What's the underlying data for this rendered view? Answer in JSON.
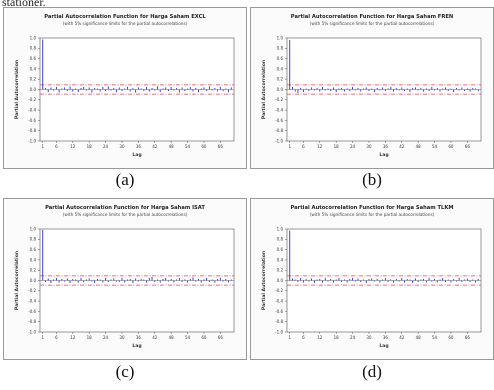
{
  "top_text": "stationer.",
  "panels": [
    {
      "caption": "(a)"
    },
    {
      "caption": "(b)"
    },
    {
      "caption": "(c)"
    },
    {
      "caption": "(d)"
    }
  ],
  "colors": {
    "spike": "#2b2bd6",
    "limit": "#e0405a",
    "frame": "#9a9a9a"
  },
  "chart_data": [
    {
      "type": "bar",
      "title": "Partial Autocorrelation Function for Harga Saham EXCL",
      "subtitle": "(with 5% significance limits for the partial autocorrelations)",
      "xlabel": "Lag",
      "ylabel": "Partial Autocorrelation",
      "ylim": [
        -1.0,
        1.0
      ],
      "yticks": [
        "1.0",
        "0.8",
        "0.6",
        "0.4",
        "0.2",
        "0.0",
        "-0.2",
        "-0.4",
        "-0.6",
        "-0.8",
        "-1.0"
      ],
      "xticks": [
        "1",
        "6",
        "12",
        "18",
        "24",
        "30",
        "36",
        "42",
        "48",
        "54",
        "60",
        "66"
      ],
      "significance_limit": 0.09,
      "x": [
        1,
        2,
        3,
        4,
        5,
        6,
        7,
        8,
        9,
        10,
        11,
        12,
        13,
        14,
        15,
        16,
        17,
        18,
        19,
        20,
        21,
        22,
        23,
        24,
        25,
        26,
        27,
        28,
        29,
        30,
        31,
        32,
        33,
        34,
        35,
        36,
        37,
        38,
        39,
        40,
        41,
        42,
        43,
        44,
        45,
        46,
        47,
        48,
        49,
        50,
        51,
        52,
        53,
        54,
        55,
        56,
        57,
        58,
        59,
        60,
        61,
        62,
        63,
        64,
        65,
        66,
        67,
        68,
        69,
        70
      ],
      "values": [
        0.97,
        0.03,
        -0.05,
        0.04,
        -0.02,
        0.05,
        -0.06,
        0.02,
        0.04,
        -0.03,
        0.06,
        -0.04,
        0.02,
        -0.05,
        0.03,
        0.05,
        -0.02,
        0.04,
        -0.06,
        0.03,
        0.02,
        -0.04,
        0.05,
        -0.03,
        0.06,
        -0.02,
        0.03,
        -0.05,
        0.04,
        -0.03,
        0.02,
        0.05,
        -0.04,
        0.03,
        -0.06,
        0.04,
        0.02,
        -0.03,
        0.05,
        -0.04,
        0.03,
        -0.02,
        0.06,
        -0.05,
        0.02,
        0.04,
        -0.03,
        0.05,
        -0.02,
        0.03,
        -0.06,
        0.04,
        -0.03,
        0.02,
        0.05,
        -0.04,
        0.03,
        -0.05,
        0.02,
        0.04,
        -0.03,
        0.06,
        -0.02,
        0.03,
        -0.04,
        0.05,
        -0.03,
        0.02,
        -0.05,
        0.04
      ]
    },
    {
      "type": "bar",
      "title": "Partial Autocorrelation Function for Harga Saham FREN",
      "subtitle": "(with 5% significance limits for the partial autocorrelations)",
      "xlabel": "Lag",
      "ylabel": "Partial Autocorrelation",
      "ylim": [
        -1.0,
        1.0
      ],
      "yticks": [
        "1.0",
        "0.8",
        "0.6",
        "0.4",
        "0.2",
        "0.0",
        "-0.2",
        "-0.4",
        "-0.6",
        "-0.8",
        "-1.0"
      ],
      "xticks": [
        "1",
        "6",
        "12",
        "18",
        "24",
        "30",
        "36",
        "42",
        "48",
        "54",
        "60",
        "66"
      ],
      "significance_limit": 0.09,
      "x": [
        1,
        2,
        3,
        4,
        5,
        6,
        7,
        8,
        9,
        10,
        11,
        12,
        13,
        14,
        15,
        16,
        17,
        18,
        19,
        20,
        21,
        22,
        23,
        24,
        25,
        26,
        27,
        28,
        29,
        30,
        31,
        32,
        33,
        34,
        35,
        36,
        37,
        38,
        39,
        40,
        41,
        42,
        43,
        44,
        45,
        46,
        47,
        48,
        49,
        50,
        51,
        52,
        53,
        54,
        55,
        56,
        57,
        58,
        59,
        60,
        61,
        62,
        63,
        64,
        65,
        66,
        67,
        68,
        69,
        70
      ],
      "values": [
        0.96,
        0.05,
        -0.04,
        -0.07,
        0.03,
        -0.05,
        0.02,
        -0.03,
        0.04,
        -0.02,
        0.03,
        -0.04,
        0.05,
        -0.02,
        0.02,
        -0.03,
        0.04,
        -0.05,
        0.02,
        0.03,
        -0.04,
        0.02,
        -0.03,
        0.05,
        -0.02,
        0.03,
        -0.04,
        0.02,
        0.04,
        -0.03,
        0.02,
        -0.05,
        0.03,
        -0.02,
        0.04,
        -0.03,
        0.02,
        0.05,
        -0.04,
        0.03,
        -0.02,
        0.04,
        -0.03,
        0.02,
        -0.05,
        0.03,
        0.04,
        -0.02,
        0.03,
        -0.04,
        0.02,
        -0.03,
        0.05,
        -0.02,
        0.03,
        -0.04,
        0.02,
        0.04,
        -0.03,
        0.02,
        -0.05,
        0.03,
        -0.02,
        0.04,
        -0.03,
        0.02,
        -0.04,
        0.03,
        0.02,
        -0.03
      ]
    },
    {
      "type": "bar",
      "title": "Partial Autocorrelation Function for Harga Saham ISAT",
      "subtitle": "(with 5% significance limits for the partial autocorrelations)",
      "xlabel": "Lag",
      "ylabel": "Partial Autocorrelation",
      "ylim": [
        -1.0,
        1.0
      ],
      "yticks": [
        "1.0",
        "0.8",
        "0.6",
        "0.4",
        "0.2",
        "0.0",
        "-0.2",
        "-0.4",
        "-0.6",
        "-0.8",
        "-1.0"
      ],
      "xticks": [
        "1",
        "6",
        "12",
        "18",
        "24",
        "30",
        "36",
        "42",
        "48",
        "54",
        "60",
        "66"
      ],
      "significance_limit": 0.09,
      "x": [
        1,
        2,
        3,
        4,
        5,
        6,
        7,
        8,
        9,
        10,
        11,
        12,
        13,
        14,
        15,
        16,
        17,
        18,
        19,
        20,
        21,
        22,
        23,
        24,
        25,
        26,
        27,
        28,
        29,
        30,
        31,
        32,
        33,
        34,
        35,
        36,
        37,
        38,
        39,
        40,
        41,
        42,
        43,
        44,
        45,
        46,
        47,
        48,
        49,
        50,
        51,
        52,
        53,
        54,
        55,
        56,
        57,
        58,
        59,
        60,
        61,
        62,
        63,
        64,
        65,
        66,
        67,
        68,
        69,
        70
      ],
      "values": [
        0.98,
        -0.03,
        0.04,
        -0.05,
        0.02,
        0.05,
        -0.04,
        0.03,
        -0.02,
        0.04,
        -0.05,
        0.03,
        0.02,
        -0.04,
        0.05,
        -0.03,
        0.02,
        0.04,
        -0.02,
        -0.05,
        0.03,
        0.02,
        -0.04,
        0.05,
        -0.03,
        0.02,
        0.04,
        -0.02,
        -0.03,
        0.05,
        -0.04,
        0.02,
        0.03,
        -0.05,
        0.04,
        -0.02,
        0.03,
        0.02,
        -0.04,
        0.05,
        0.07,
        -0.03,
        0.02,
        -0.04,
        0.03,
        0.05,
        -0.02,
        0.03,
        -0.04,
        0.02,
        0.05,
        -0.03,
        0.02,
        -0.04,
        0.03,
        0.06,
        -0.02,
        0.03,
        -0.04,
        0.02,
        0.05,
        -0.03,
        0.02,
        -0.04,
        0.03,
        0.05,
        -0.02,
        0.03,
        -0.04,
        0.02
      ]
    },
    {
      "type": "bar",
      "title": "Partial Autocorrelation Function for Harga Saham TLKM",
      "subtitle": "(with 5% significance limits for the partial autocorrelations)",
      "xlabel": "Lag",
      "ylabel": "Partial Autocorrelation",
      "ylim": [
        -1.0,
        1.0
      ],
      "yticks": [
        "1.0",
        "0.8",
        "0.6",
        "0.4",
        "0.2",
        "0.0",
        "-0.2",
        "-0.4",
        "-0.6",
        "-0.8",
        "-1.0"
      ],
      "xticks": [
        "1",
        "6",
        "12",
        "18",
        "24",
        "30",
        "36",
        "42",
        "48",
        "54",
        "60",
        "66"
      ],
      "significance_limit": 0.09,
      "x": [
        1,
        2,
        3,
        4,
        5,
        6,
        7,
        8,
        9,
        10,
        11,
        12,
        13,
        14,
        15,
        16,
        17,
        18,
        19,
        20,
        21,
        22,
        23,
        24,
        25,
        26,
        27,
        28,
        29,
        30,
        31,
        32,
        33,
        34,
        35,
        36,
        37,
        38,
        39,
        40,
        41,
        42,
        43,
        44,
        45,
        46,
        47,
        48,
        49,
        50,
        51,
        52,
        53,
        54,
        55,
        56,
        57,
        58,
        59,
        60,
        61,
        62,
        63,
        64,
        65,
        66,
        67,
        68,
        69,
        70
      ],
      "values": [
        0.97,
        0.04,
        0.02,
        -0.03,
        0.05,
        -0.04,
        0.03,
        -0.02,
        0.04,
        -0.05,
        0.02,
        0.03,
        -0.04,
        0.05,
        -0.02,
        0.03,
        -0.04,
        0.02,
        0.05,
        -0.03,
        0.02,
        -0.04,
        0.03,
        0.05,
        -0.02,
        0.04,
        -0.03,
        0.02,
        -0.05,
        0.03,
        0.04,
        -0.02,
        0.03,
        -0.04,
        0.02,
        0.05,
        -0.03,
        0.02,
        -0.04,
        0.03,
        -0.02,
        0.05,
        -0.04,
        0.03,
        0.02,
        -0.05,
        0.04,
        -0.03,
        0.02,
        0.03,
        -0.04,
        0.05,
        -0.02,
        0.03,
        -0.04,
        0.02,
        0.05,
        -0.03,
        0.02,
        -0.04,
        0.03,
        -0.02,
        0.05,
        -0.03,
        0.02,
        0.04,
        -0.03,
        0.02,
        -0.04,
        0.03
      ]
    }
  ]
}
